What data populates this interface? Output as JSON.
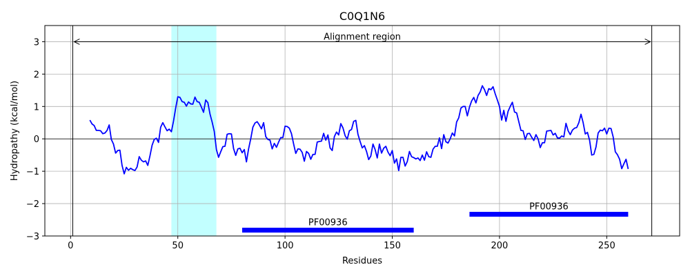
{
  "chart_data": {
    "type": "line",
    "title": "C0Q1N6",
    "xlabel": "Residues",
    "ylabel": "Hydropathy (kcal/mol)",
    "xlim": [
      -12,
      284
    ],
    "ylim": [
      -3,
      3.5
    ],
    "xticks": [
      0,
      50,
      100,
      150,
      200,
      250
    ],
    "yticks": [
      -3,
      -2,
      -1,
      0,
      1,
      2,
      3
    ],
    "grid": true,
    "line_color": "#0000ff",
    "highlight_color": "#c2ffff",
    "feature_color": "#0000ff",
    "series": [
      {
        "x": [
          9,
          10,
          11,
          12,
          13,
          14,
          15,
          16,
          17,
          18,
          19,
          20,
          21,
          22,
          23,
          24,
          25,
          26,
          27,
          28,
          29,
          30,
          31,
          32,
          33,
          34,
          35,
          36,
          37,
          38,
          39,
          40,
          41,
          42,
          43,
          44,
          45,
          46,
          47,
          48,
          49,
          50,
          51,
          52,
          53,
          54,
          55,
          56,
          57,
          58,
          59,
          60,
          61,
          62,
          63,
          64,
          65,
          66,
          67,
          68,
          69,
          70,
          71,
          72,
          73,
          74,
          75,
          76,
          77,
          78,
          79,
          80,
          81,
          82,
          83,
          84,
          85,
          86,
          87,
          88,
          89,
          90,
          91,
          92,
          93,
          94,
          95,
          96,
          97,
          98,
          99,
          100,
          101,
          102,
          103,
          104,
          105,
          106,
          107,
          108,
          109,
          110,
          111,
          112,
          113,
          114,
          115,
          116,
          117,
          118,
          119,
          120,
          121,
          122,
          123,
          124,
          125,
          126,
          127,
          128,
          129,
          130,
          131,
          132,
          133,
          134,
          135,
          136,
          137,
          138,
          139,
          140,
          141,
          142,
          143,
          144,
          145,
          146,
          147,
          148,
          149,
          150,
          151,
          152,
          153,
          154,
          155,
          156,
          157,
          158,
          159,
          160,
          161,
          162,
          163,
          164,
          165,
          166,
          167,
          168,
          169,
          170,
          171,
          172,
          173,
          174,
          175,
          176,
          177,
          178,
          179,
          180,
          181,
          182,
          183,
          184,
          185,
          186,
          187,
          188,
          189,
          190,
          191,
          192,
          193,
          194,
          195,
          196,
          197,
          198,
          199,
          200,
          201,
          202,
          203,
          204,
          205,
          206,
          207,
          208,
          209,
          210,
          211,
          212,
          213,
          214,
          215,
          216,
          217,
          218,
          219,
          220,
          221,
          222,
          223,
          224,
          225,
          226,
          227,
          228,
          229,
          230,
          231,
          232,
          233,
          234,
          235,
          236,
          237,
          238,
          239,
          240,
          241,
          242,
          243,
          244,
          245,
          246,
          247,
          248,
          249,
          250,
          251,
          252,
          253,
          254,
          255,
          256,
          257,
          258,
          259,
          260
        ],
        "y": [
          0.58,
          0.46,
          0.41,
          0.26,
          0.26,
          0.25,
          0.16,
          0.18,
          0.26,
          0.43,
          -0.02,
          -0.16,
          -0.44,
          -0.36,
          -0.35,
          -0.82,
          -1.08,
          -0.88,
          -0.97,
          -0.91,
          -0.95,
          -0.98,
          -0.87,
          -0.55,
          -0.66,
          -0.71,
          -0.68,
          -0.82,
          -0.53,
          -0.2,
          -0.02,
          0.02,
          -0.11,
          0.36,
          0.5,
          0.37,
          0.25,
          0.3,
          0.22,
          0.55,
          0.95,
          1.3,
          1.28,
          1.15,
          1.13,
          1.01,
          1.14,
          1.08,
          1.07,
          1.29,
          1.15,
          1.13,
          0.98,
          0.82,
          1.2,
          1.12,
          0.77,
          0.52,
          0.23,
          -0.33,
          -0.57,
          -0.4,
          -0.24,
          -0.23,
          0.14,
          0.16,
          0.15,
          -0.3,
          -0.51,
          -0.31,
          -0.29,
          -0.43,
          -0.33,
          -0.71,
          -0.31,
          0.0,
          0.36,
          0.49,
          0.53,
          0.43,
          0.31,
          0.5,
          0.07,
          -0.02,
          -0.04,
          -0.31,
          -0.14,
          -0.26,
          -0.1,
          0.04,
          0.04,
          0.39,
          0.38,
          0.33,
          0.16,
          -0.16,
          -0.45,
          -0.31,
          -0.32,
          -0.42,
          -0.69,
          -0.39,
          -0.45,
          -0.63,
          -0.48,
          -0.48,
          -0.1,
          -0.08,
          -0.07,
          0.17,
          -0.04,
          0.12,
          -0.28,
          -0.36,
          0.07,
          0.21,
          0.12,
          0.47,
          0.34,
          0.1,
          -0.01,
          0.25,
          0.29,
          0.54,
          0.57,
          0.14,
          -0.08,
          -0.28,
          -0.21,
          -0.39,
          -0.64,
          -0.53,
          -0.16,
          -0.33,
          -0.59,
          -0.16,
          -0.44,
          -0.29,
          -0.23,
          -0.41,
          -0.52,
          -0.36,
          -0.75,
          -0.62,
          -0.98,
          -0.57,
          -0.57,
          -0.84,
          -0.7,
          -0.39,
          -0.55,
          -0.58,
          -0.62,
          -0.59,
          -0.67,
          -0.5,
          -0.66,
          -0.4,
          -0.55,
          -0.57,
          -0.32,
          -0.23,
          -0.23,
          0.03,
          -0.3,
          0.13,
          -0.09,
          -0.13,
          0.0,
          0.18,
          0.09,
          0.52,
          0.65,
          0.95,
          1.0,
          1.0,
          0.71,
          0.98,
          1.17,
          1.28,
          1.11,
          1.34,
          1.45,
          1.64,
          1.52,
          1.34,
          1.55,
          1.52,
          1.61,
          1.39,
          1.2,
          1.0,
          0.58,
          0.88,
          0.54,
          0.85,
          1.0,
          1.13,
          0.83,
          0.8,
          0.53,
          0.26,
          0.25,
          -0.02,
          0.16,
          0.17,
          0.05,
          -0.05,
          0.13,
          0.0,
          -0.27,
          -0.12,
          -0.12,
          0.24,
          0.25,
          0.26,
          0.12,
          0.17,
          0.03,
          0.02,
          0.09,
          0.06,
          0.48,
          0.25,
          0.13,
          0.27,
          0.33,
          0.35,
          0.5,
          0.76,
          0.5,
          0.15,
          0.2,
          -0.04,
          -0.5,
          -0.48,
          -0.25,
          0.18,
          0.27,
          0.25,
          0.33,
          0.15,
          0.33,
          0.32,
          0.06,
          -0.4,
          -0.49,
          -0.63,
          -0.92,
          -0.77,
          -0.63,
          -0.93
        ]
      }
    ],
    "highlight_regions": [
      {
        "start": 47,
        "end": 68
      }
    ],
    "vlines": [
      1,
      271
    ],
    "alignment": {
      "start": 1,
      "end": 271,
      "y": 3.0,
      "label": "Alignment region"
    },
    "features": [
      {
        "start": 80,
        "end": 160,
        "y": -2.82,
        "label": "PF00936"
      },
      {
        "start": 186,
        "end": 260,
        "y": -2.33,
        "label": "PF00936"
      }
    ]
  }
}
